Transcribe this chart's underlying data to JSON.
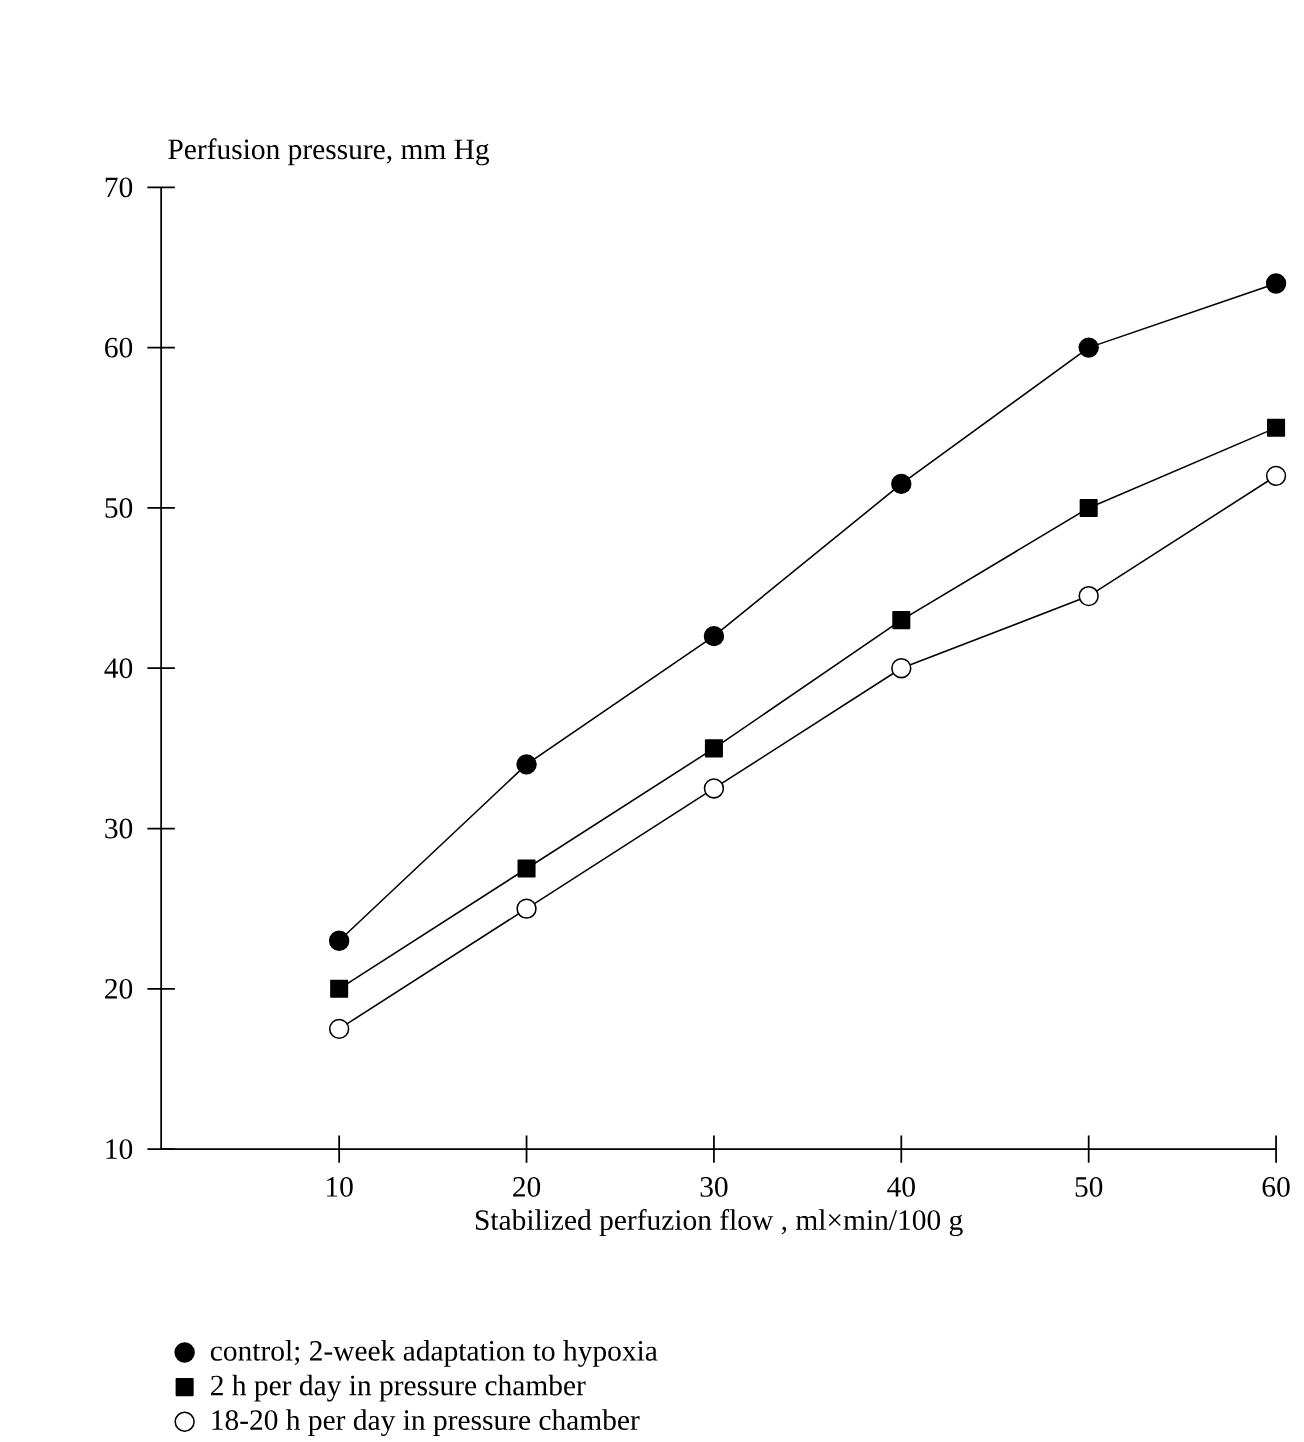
{
  "chart_data": {
    "type": "line",
    "xlabel": "Stabilized perfuzion flow , ml×min/100 g",
    "ylabel": "Perfusion pressure, mm Hg",
    "x": [
      10,
      20,
      30,
      40,
      50,
      60
    ],
    "series": [
      {
        "name": "control; 2-week adaptation to hypoxia",
        "color": "#000000",
        "marker": "circle",
        "values": [
          23,
          34,
          42,
          51.5,
          60,
          64
        ]
      },
      {
        "name": "2 h per day in pressure chamber",
        "color": "#000000",
        "marker": "square",
        "values": [
          20,
          27.5,
          35,
          43,
          50,
          55
        ]
      },
      {
        "name": "18-20 h per day in pressure chamber",
        "color": "#ffffff",
        "marker": "circle",
        "values": [
          17.5,
          25,
          32.5,
          40,
          44.5,
          52
        ]
      }
    ],
    "xlim": [
      0.5,
      60
    ],
    "ylim": [
      10,
      70
    ],
    "xticks": [
      10,
      20,
      30,
      40,
      50,
      60
    ],
    "yticks": [
      10,
      20,
      30,
      40,
      50,
      60,
      70
    ],
    "grid": false,
    "legend": "bottom",
    "line_style": "solid"
  }
}
